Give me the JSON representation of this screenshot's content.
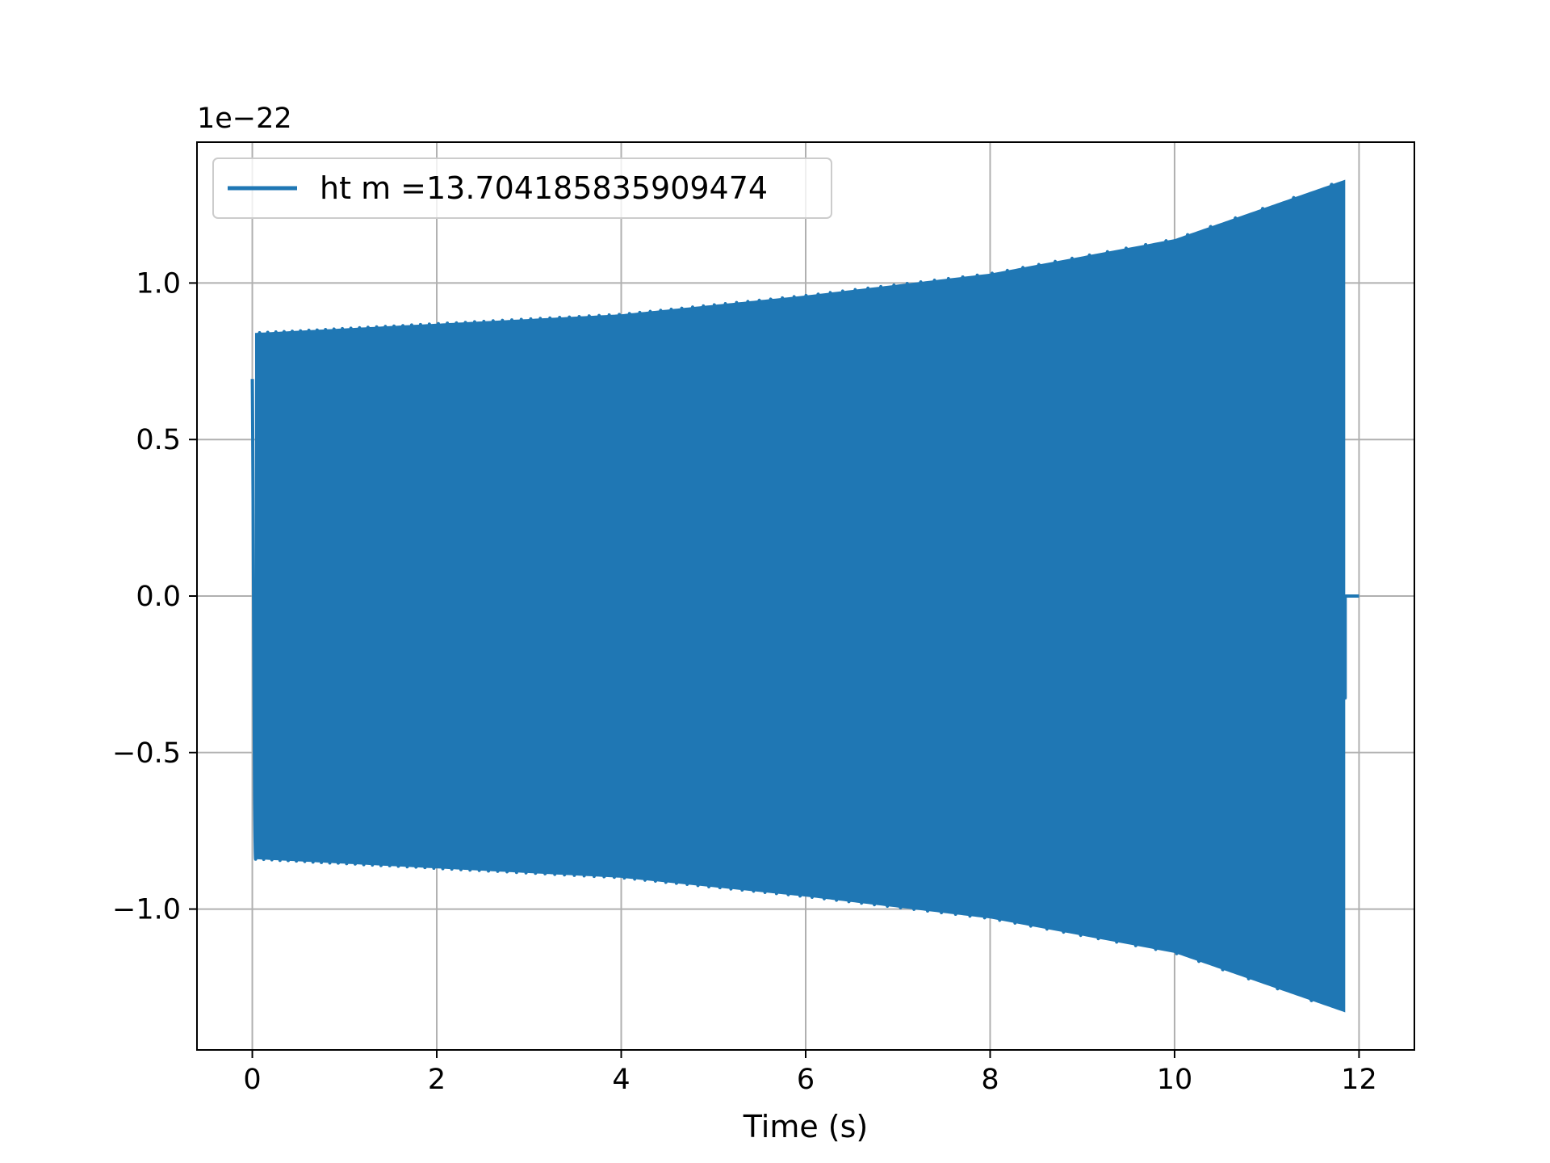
{
  "chart_data": {
    "type": "line",
    "title": "",
    "xlabel": "Time (s)",
    "ylabel": "",
    "y_offset_label": "1e−22",
    "y_scale_factor": 1e-22,
    "xlim": [
      -0.6,
      12.6
    ],
    "ylim": [
      -1.45,
      1.45
    ],
    "grid": true,
    "legend_position": "upper-left",
    "x_ticks": [
      0,
      2,
      4,
      6,
      8,
      10,
      12
    ],
    "x_tick_labels": [
      "0",
      "2",
      "4",
      "6",
      "8",
      "10",
      "12"
    ],
    "y_ticks": [
      -1.0,
      -0.5,
      0.0,
      0.5,
      1.0
    ],
    "y_tick_labels": [
      "−1.0",
      "−0.5",
      "0.0",
      "0.5",
      "1.0"
    ],
    "series": [
      {
        "name": "ht m =13.704185835909474",
        "color": "#1f77b4",
        "signal": "chirp",
        "t_start": 0.0,
        "t_merger": 11.85,
        "t_end": 12.0,
        "initial_amplitude": 0.84,
        "envelope_samples": [
          {
            "t": 0.0,
            "amplitude": 0.84
          },
          {
            "t": 2.0,
            "amplitude": 0.87
          },
          {
            "t": 4.0,
            "amplitude": 0.9
          },
          {
            "t": 6.0,
            "amplitude": 0.96
          },
          {
            "t": 8.0,
            "amplitude": 1.03
          },
          {
            "t": 10.0,
            "amplitude": 1.14
          },
          {
            "t": 11.85,
            "amplitude": 1.33
          }
        ],
        "post_merger_value": 0.0
      }
    ]
  }
}
